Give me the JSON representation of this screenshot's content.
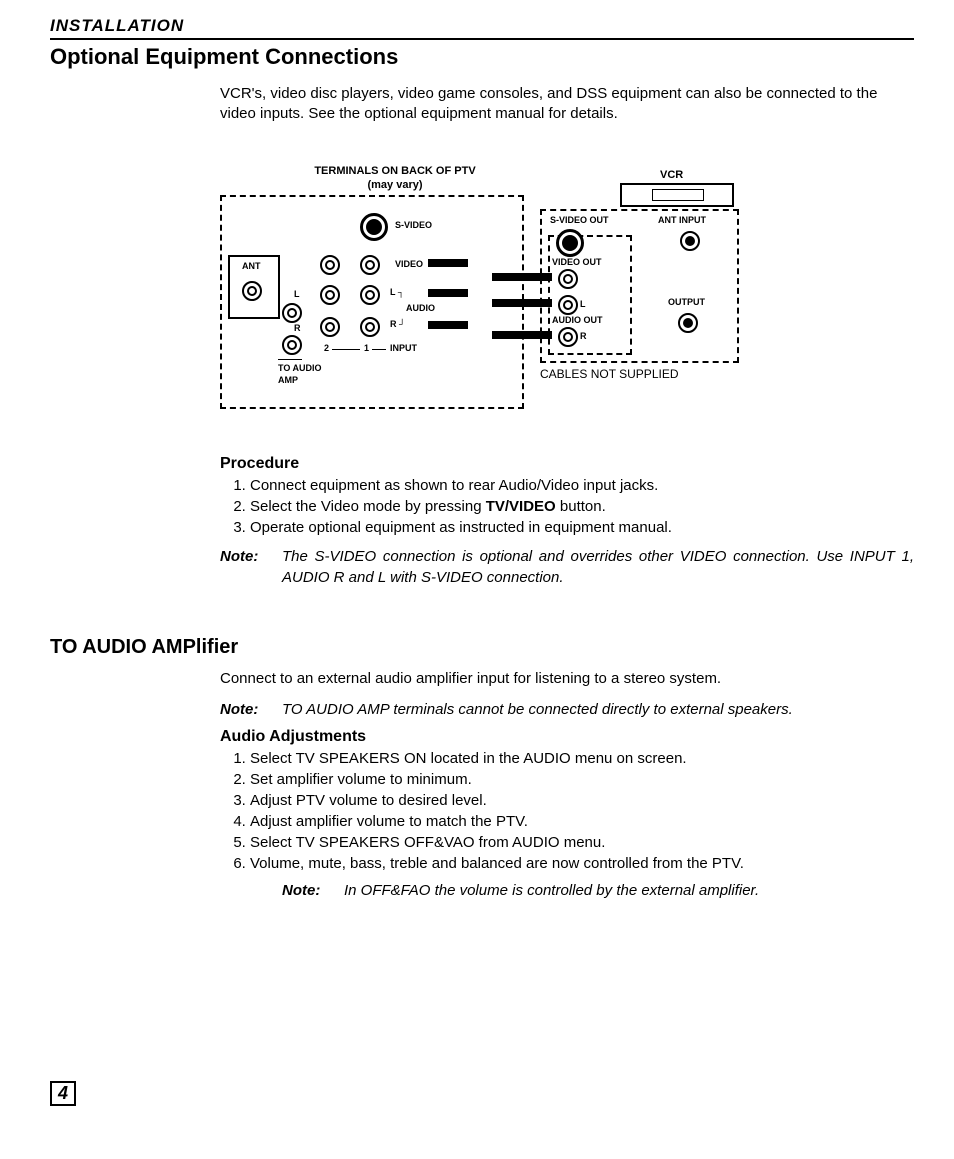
{
  "header": "INSTALLATION",
  "title1": "Optional Equipment Connections",
  "intro": "VCR's, video disc players, video game consoles, and DSS equipment can also be connected to the video inputs.  See the optional equipment manual for details.",
  "diagram": {
    "title1": "TERMINALS ON BACK OF PTV",
    "title2": "(may vary)",
    "vcr": "VCR",
    "ant": "ANT",
    "svideo": "S-VIDEO",
    "video": "VIDEO",
    "audio": "AUDIO",
    "l": "L",
    "r": "R",
    "to_audio_amp1": "TO AUDIO",
    "to_audio_amp2": "AMP",
    "input": "INPUT",
    "one": "1",
    "two": "2",
    "svideo_out": "S-VIDEO OUT",
    "ant_input": "ANT INPUT",
    "video_out": "VIDEO OUT",
    "audio_out": "AUDIO OUT",
    "output": "OUTPUT",
    "cables": "CABLES NOT SUPPLIED"
  },
  "procedure_heading": "Procedure",
  "proc": [
    "Connect equipment as shown to rear Audio/Video input jacks.",
    "Select the Video mode by pressing <b>TV/VIDEO</b> button.",
    "Operate optional equipment as instructed in equipment manual."
  ],
  "note1_label": "Note:",
  "note1": "The S-VIDEO connection is optional and overrides other VIDEO connection. Use INPUT 1,  AUDIO R and L with S-VIDEO connection.",
  "title2": "TO AUDIO AMPlifier",
  "amp_intro": "Connect to an external audio amplifier input for listening to a stereo system.",
  "note2_label": "Note:",
  "note2": "TO AUDIO AMP terminals cannot be connected directly to external speakers.",
  "audio_adj_heading": "Audio Adjustments",
  "audio_steps": [
    "Select TV SPEAKERS ON  located in the AUDIO menu on screen.",
    "Set amplifier volume to minimum.",
    "Adjust PTV volume to desired level.",
    "Adjust amplifier volume to match the PTV.",
    "Select TV SPEAKERS OFF&VAO from AUDIO menu.",
    "Volume, mute, bass, treble and balanced  are now controlled from the PTV."
  ],
  "note3_label": "Note:",
  "note3": "In OFF&FAO the volume is controlled by the external amplifier.",
  "page_number": "4"
}
